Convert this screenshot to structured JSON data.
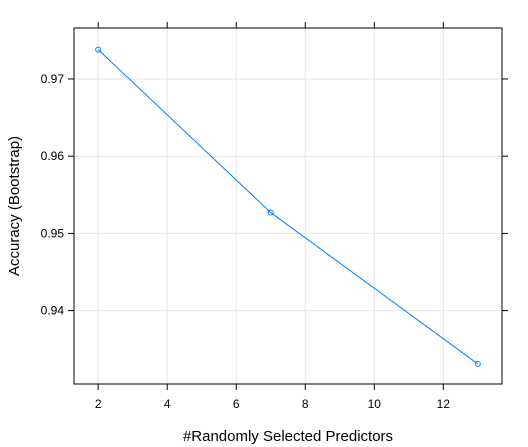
{
  "chart_data": {
    "type": "line",
    "title": "",
    "xlabel": "#Randomly Selected Predictors",
    "ylabel": "Accuracy (Bootstrap)",
    "xlim": [
      1.3,
      13.7
    ],
    "ylim": [
      0.9305,
      0.9766
    ],
    "x_ticks": [
      2,
      4,
      6,
      8,
      10,
      12
    ],
    "x_tick_labels": [
      "2",
      "4",
      "6",
      "8",
      "10",
      "12"
    ],
    "y_ticks": [
      0.94,
      0.95,
      0.96,
      0.97
    ],
    "y_tick_labels": [
      "0.94",
      "0.95",
      "0.96",
      "0.97"
    ],
    "grid": true,
    "series": [
      {
        "x": [
          2,
          7,
          13
        ],
        "y": [
          0.9738,
          0.9527,
          0.9331
        ],
        "color": "#0080ff",
        "marker": "open-circle"
      }
    ],
    "colors": {
      "line": "#0080ff",
      "grid": "#e6e6e6",
      "frame": "#000000"
    }
  }
}
